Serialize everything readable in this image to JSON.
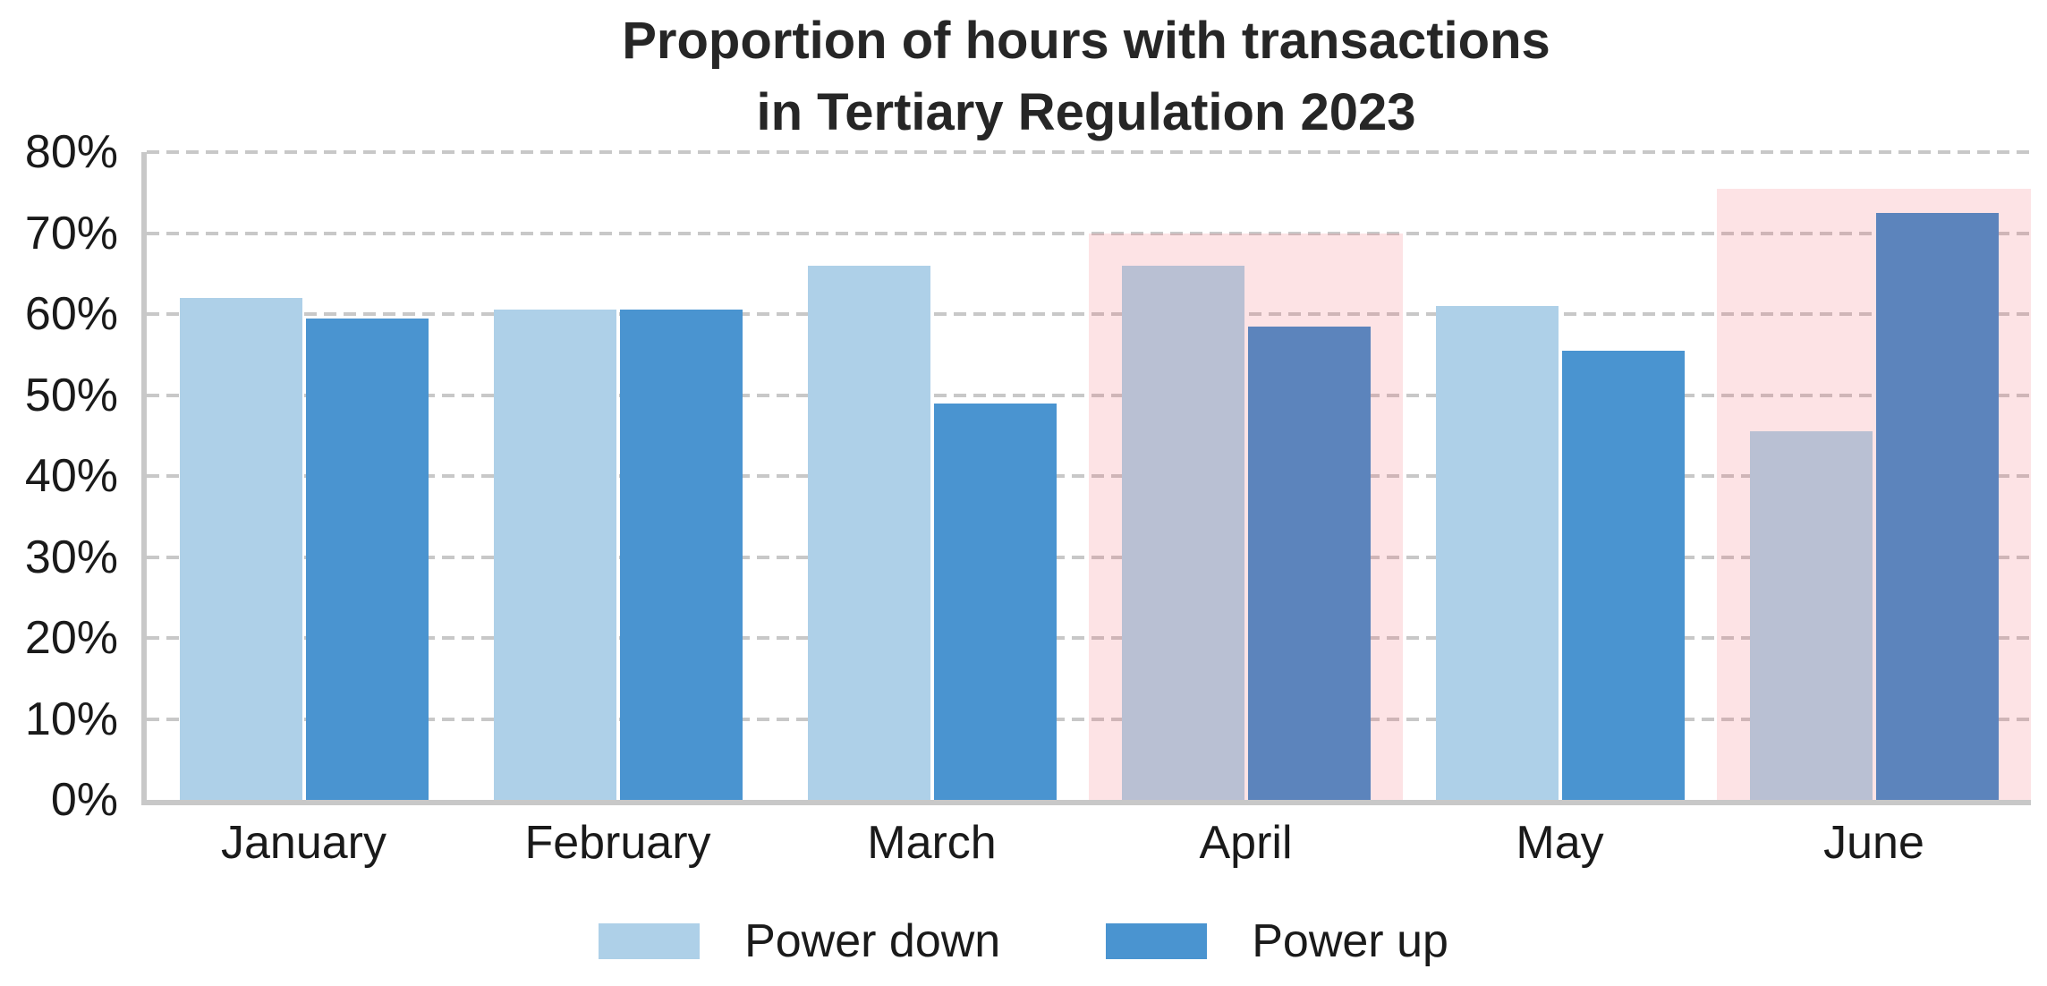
{
  "chart_data": {
    "type": "bar",
    "title": "Proportion of hours with transactions in Tertiary Regulation 2023",
    "title_lines": [
      "Proportion of hours with transactions",
      "in Tertiary Regulation 2023"
    ],
    "categories": [
      "January",
      "February",
      "March",
      "April",
      "May",
      "June"
    ],
    "series": [
      {
        "name": "Power down",
        "color": "#aed0e8",
        "highlighted_color": "#b9c0d3",
        "values": [
          62,
          60.5,
          66,
          66,
          61,
          45.5
        ]
      },
      {
        "name": "Power up",
        "color": "#4a94d0",
        "highlighted_color": "#5c84bc",
        "values": [
          59.5,
          60.5,
          49,
          58.5,
          55.5,
          72.5
        ]
      }
    ],
    "value_unit": "%",
    "highlight_bands": [
      {
        "category": "April",
        "top": 70
      },
      {
        "category": "June",
        "top": 75.5
      }
    ],
    "highlight_band_visible_color": "#fde1e4",
    "xlabel": "",
    "ylabel": "",
    "ylim": [
      0,
      80
    ],
    "ytick_step": 10,
    "yticks": [
      "0%",
      "10%",
      "20%",
      "30%",
      "40%",
      "50%",
      "60%",
      "70%",
      "80%"
    ],
    "grid": "horizontal-dashed",
    "legend_position": "bottom-center",
    "colors": {
      "grid": "#c8c8c8",
      "axis": "#c8c8c8",
      "tick_text": "#1a1a1a",
      "title_text": "#262626",
      "background": "#ffffff"
    }
  }
}
